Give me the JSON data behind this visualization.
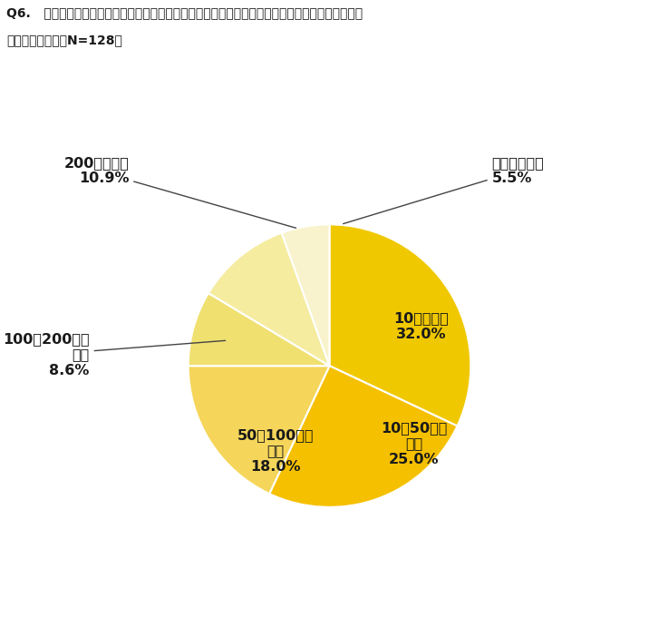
{
  "title_line1": "Q6.   退職してからの転職を行う場合、転職活動の為に必要だと思う貯金（資金）はいくら必要だと",
  "title_line2": "感じましたか？（N=128）",
  "slices": [
    {
      "label_line1": "10万円未満",
      "label_line2": "32.0%",
      "value": 32.0,
      "color": "#F0C800"
    },
    {
      "label_line1": "10〜50万円",
      "label_line2": "未満",
      "label_line3": "25.0%",
      "value": 25.0,
      "color": "#F5C000"
    },
    {
      "label_line1": "50〜100万円",
      "label_line2": "未満",
      "label_line3": "18.0%",
      "value": 18.0,
      "color": "#F5D55A"
    },
    {
      "label_line1": "100〜200万円",
      "label_line2": "未満",
      "label_line3": "8.6%",
      "value": 8.6,
      "color": "#F0E070"
    },
    {
      "label_line1": "200万円以上",
      "label_line2": "10.9%",
      "value": 10.9,
      "color": "#F5ECA0"
    },
    {
      "label_line1": "答えたくない",
      "label_line2": "5.5%",
      "value": 5.5,
      "color": "#F8F3CC"
    }
  ],
  "background_color": "#ffffff",
  "text_color": "#1a1a1a",
  "title_fontsize": 10.0,
  "label_fontsize": 11.5
}
